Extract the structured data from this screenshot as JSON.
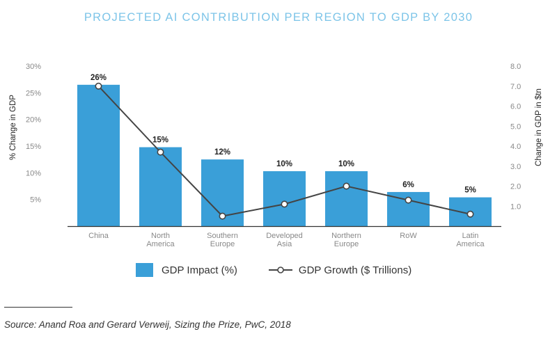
{
  "chart_data": {
    "type": "bar",
    "title": "PROJECTED AI CONTRIBUTION PER REGION TO GDP BY 2030",
    "categories": [
      [
        "China"
      ],
      [
        "North",
        "America"
      ],
      [
        "Southern",
        "Europe"
      ],
      [
        "Developed",
        "Asia"
      ],
      [
        "Northern",
        "Europe"
      ],
      [
        "RoW"
      ],
      [
        "Latin",
        "America"
      ]
    ],
    "series": [
      {
        "name": "GDP Impact (%)",
        "type": "bar",
        "axis": "left",
        "values": [
          26.5,
          14.8,
          12.5,
          10.3,
          10.3,
          6.4,
          5.4
        ],
        "data_labels": [
          "26%",
          "15%",
          "12%",
          "10%",
          "10%",
          "6%",
          "5%"
        ],
        "color": "#3a9fd8"
      },
      {
        "name": "GDP Growth ($ Trillions)",
        "type": "line",
        "axis": "right",
        "values": [
          7.0,
          3.7,
          0.5,
          1.1,
          2.0,
          1.3,
          0.6
        ],
        "color": "#444444"
      }
    ],
    "y_left": {
      "label": "% Change in GDP",
      "ticks": [
        5,
        10,
        15,
        20,
        25,
        30
      ],
      "tick_labels": [
        "5%",
        "10%",
        "15%",
        "20%",
        "25%",
        "30%"
      ],
      "range": [
        0,
        30
      ]
    },
    "y_right": {
      "label": "Change in GDP in $tn",
      "ticks": [
        1,
        2,
        3,
        4,
        5,
        6,
        7,
        8
      ],
      "tick_labels": [
        "1.0",
        "2.0",
        "3.0",
        "4.0",
        "5.0",
        "6.0",
        "7.0",
        "8.0"
      ],
      "range": [
        0,
        8
      ]
    },
    "grid": false,
    "legend_position": "bottom"
  },
  "legend": {
    "bar_label": "GDP Impact (%)",
    "line_label": "GDP Growth ($ Trillions)"
  },
  "source": {
    "prefix": "Source:",
    "text": " Anand Roa and Gerard Verweij, Sizing the Prize, PwC, 2018"
  },
  "colors": {
    "bar": "#3a9fd8",
    "line": "#444444",
    "title": "#7cc4e8",
    "axis_text": "#888888"
  }
}
